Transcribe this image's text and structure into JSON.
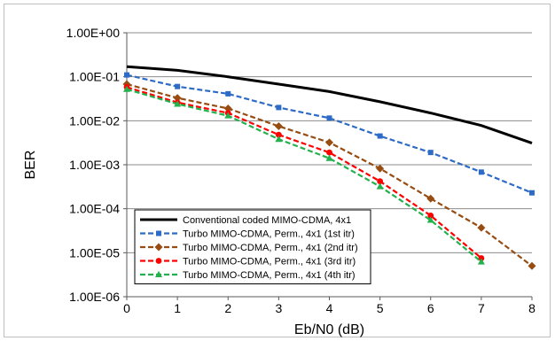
{
  "chart_data": {
    "type": "line",
    "title": "",
    "xlabel": "Eb/N0 (dB)",
    "ylabel": "BER",
    "yscale": "log",
    "xlim": [
      0,
      8
    ],
    "ylim": [
      1e-06,
      1
    ],
    "grid": "horizontal",
    "legend_position": "lower-left",
    "x_ticks": [
      "0",
      "1",
      "2",
      "3",
      "4",
      "5",
      "6",
      "7",
      "8"
    ],
    "y_ticks": [
      "1.00E+00",
      "1.00E-01",
      "1.00E-02",
      "1.00E-03",
      "1.00E-04",
      "1.00E-05",
      "1.00E-06"
    ],
    "series": [
      {
        "name": "Conventional coded MIMO-CDMA, 4x1",
        "color": "#000000",
        "dash": "solid",
        "marker": "none",
        "x": [
          0,
          1,
          2,
          3,
          4,
          5,
          6,
          7,
          8
        ],
        "y": [
          0.17,
          0.14,
          0.1,
          0.068,
          0.046,
          0.027,
          0.015,
          0.0078,
          0.0031
        ]
      },
      {
        "name": "Turbo MIMO-CDMA, Perm., 4x1 (1st itr)",
        "color": "#2e6bc6",
        "dash": "dashed",
        "marker": "square",
        "x": [
          0,
          1,
          2,
          3,
          4,
          5,
          6,
          7,
          8
        ],
        "y": [
          0.11,
          0.06,
          0.041,
          0.02,
          0.0115,
          0.0045,
          0.0019,
          0.00068,
          0.00023
        ]
      },
      {
        "name": "Turbo MIMO-CDMA, Perm., 4x1 (2nd itr)",
        "color": "#974d12",
        "dash": "dashed",
        "marker": "diamond",
        "x": [
          0,
          1,
          2,
          3,
          4,
          5,
          6,
          7,
          8
        ],
        "y": [
          0.068,
          0.033,
          0.019,
          0.0075,
          0.0032,
          0.00082,
          0.00017,
          3.7e-05,
          5e-06
        ]
      },
      {
        "name": "Turbo MIMO-CDMA, Perm., 4x1 (3rd itr)",
        "color": "#ff0000",
        "dash": "dashed",
        "marker": "circle",
        "x": [
          0,
          1,
          2,
          3,
          4,
          5,
          6,
          7
        ],
        "y": [
          0.058,
          0.026,
          0.015,
          0.0048,
          0.0019,
          0.00042,
          7e-05,
          7.5e-06
        ]
      },
      {
        "name": "Turbo MIMO-CDMA, Perm., 4x1 (4th itr)",
        "color": "#22b14c",
        "dash": "dashed",
        "marker": "triangle",
        "x": [
          0,
          1,
          2,
          3,
          4,
          5,
          6,
          7
        ],
        "y": [
          0.052,
          0.024,
          0.013,
          0.0038,
          0.0014,
          0.00032,
          5.5e-05,
          6.2e-06
        ]
      }
    ]
  }
}
